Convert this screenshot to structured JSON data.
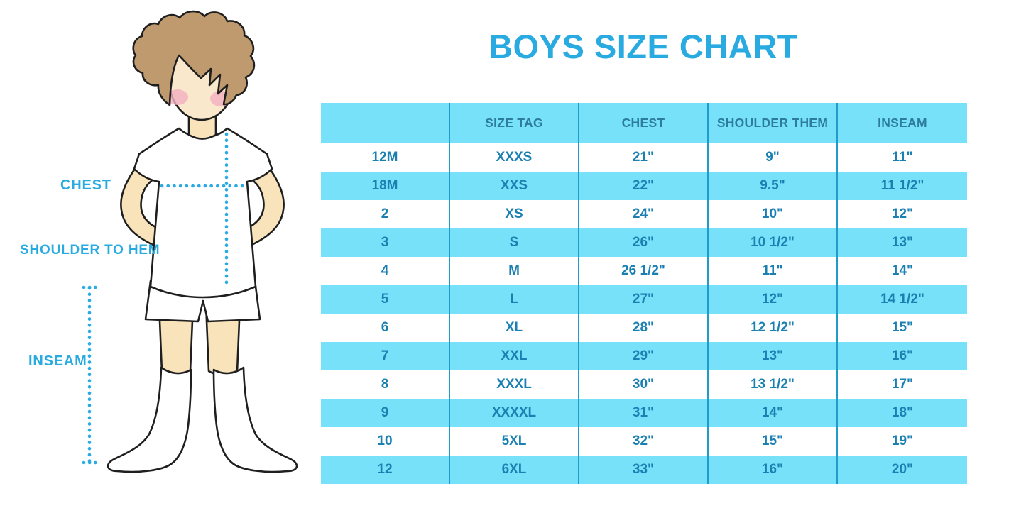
{
  "title": "BOYS SIZE CHART",
  "figure": {
    "illustration": "boy-in-white-tshirt-shorts-and-knee-socks",
    "labels": {
      "chest": "CHEST",
      "shoulder_to_hem": "SHOULDER TO HEM",
      "inseam": "INSEAM"
    }
  },
  "colors": {
    "accent_blue": "#29ABE2",
    "band_cyan": "#76E1F8",
    "divider_blue": "#219BC9",
    "header_text": "#2D7C9E",
    "cell_text": "#1A80B2",
    "skin": "#F8E3BB",
    "hair": "#BE9A6E",
    "blush": "#F2AFC0",
    "outline": "#1F1F1F"
  },
  "table": {
    "columns": [
      "",
      "SIZE TAG",
      "CHEST",
      "SHOULDER THEM",
      "INSEAM"
    ],
    "rows": [
      [
        "12M",
        "XXXS",
        "21\"",
        "9\"",
        "11\""
      ],
      [
        "18M",
        "XXS",
        "22\"",
        "9.5\"",
        "11 1/2\""
      ],
      [
        "2",
        "XS",
        "24\"",
        "10\"",
        "12\""
      ],
      [
        "3",
        "S",
        "26\"",
        "10 1/2\"",
        "13\""
      ],
      [
        "4",
        "M",
        "26 1/2\"",
        "11\"",
        "14\""
      ],
      [
        "5",
        "L",
        "27\"",
        "12\"",
        "14 1/2\""
      ],
      [
        "6",
        "XL",
        "28\"",
        "12 1/2\"",
        "15\""
      ],
      [
        "7",
        "XXL",
        "29\"",
        "13\"",
        "16\""
      ],
      [
        "8",
        "XXXL",
        "30\"",
        "13 1/2\"",
        "17\""
      ],
      [
        "9",
        "XXXXL",
        "31\"",
        "14\"",
        "18\""
      ],
      [
        "10",
        "5XL",
        "32\"",
        "15\"",
        "19\""
      ],
      [
        "12",
        "6XL",
        "33\"",
        "16\"",
        "20\""
      ]
    ]
  }
}
